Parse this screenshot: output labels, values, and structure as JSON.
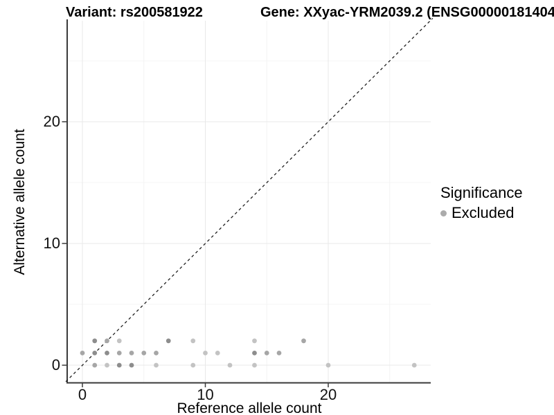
{
  "titles": {
    "variant": "Variant: rs200581922",
    "gene": "Gene: XXyac-YRM2039.2 (ENSG00000181404"
  },
  "axes": {
    "x": {
      "title": "Reference allele count",
      "major_ticks": [
        0,
        10,
        20
      ],
      "minor_ticks": [
        5,
        15,
        25
      ]
    },
    "y": {
      "title": "Alternative allele count",
      "major_ticks": [
        0,
        10,
        20
      ],
      "minor_ticks": [
        5,
        15,
        25
      ]
    }
  },
  "legend": {
    "title": "Significance",
    "items": [
      {
        "label": "Excluded",
        "color": "#ababab"
      }
    ]
  },
  "style": {
    "background": "#ffffff",
    "grid_major": "#e8e8e8",
    "grid_minor": "#f4f4f4",
    "axis_line": "#3a3a3a",
    "tick_text": "#111111",
    "title_text": "#000000",
    "identity_line": "#1f1f1f",
    "point_shades": {
      "d": "#8d8d8d",
      "m": "#a6a6a6",
      "l": "#c3c3c3"
    }
  },
  "chart_data": {
    "type": "scatter",
    "title": "Variant: rs200581922 — Gene: XXyac-YRM2039.2 (ENSG00000181404",
    "xlabel": "Reference allele count",
    "ylabel": "Alternative allele count",
    "xlim": [
      -1.35,
      28.5
    ],
    "ylim": [
      -1.5,
      28.3
    ],
    "x_ticks": [
      0,
      10,
      20
    ],
    "y_ticks": [
      0,
      10,
      20
    ],
    "grid": "major and minor gridlines, white panel, left/bottom axis lines only",
    "legend_position": "right",
    "reference_line": {
      "type": "identity y=x",
      "style": "dashed",
      "from": -1.35,
      "to": 28.5
    },
    "series": [
      {
        "name": "Excluded",
        "color": "#a6a6a6",
        "note": "points listed as [x, y, shade] where shade d=dark (overplotted), m=medium, l=light",
        "points": [
          [
            1,
            2,
            "d"
          ],
          [
            2,
            2,
            "m"
          ],
          [
            3,
            2,
            "l"
          ],
          [
            7,
            2,
            "d"
          ],
          [
            9,
            2,
            "l"
          ],
          [
            14,
            2,
            "l"
          ],
          [
            18,
            2,
            "m"
          ],
          [
            0,
            1,
            "m"
          ],
          [
            1,
            1,
            "d"
          ],
          [
            2,
            1,
            "d"
          ],
          [
            3,
            1,
            "m"
          ],
          [
            4,
            1,
            "m"
          ],
          [
            5,
            1,
            "m"
          ],
          [
            6,
            1,
            "m"
          ],
          [
            10,
            1,
            "l"
          ],
          [
            11,
            1,
            "l"
          ],
          [
            14,
            1,
            "d"
          ],
          [
            15,
            1,
            "m"
          ],
          [
            16,
            1,
            "m"
          ],
          [
            1,
            0,
            "m"
          ],
          [
            2,
            0,
            "l"
          ],
          [
            3,
            0,
            "d"
          ],
          [
            4,
            0,
            "d"
          ],
          [
            6,
            0,
            "l"
          ],
          [
            9,
            0,
            "l"
          ],
          [
            12,
            0,
            "l"
          ],
          [
            14,
            0,
            "l"
          ],
          [
            20,
            0,
            "l"
          ],
          [
            27,
            0,
            "l"
          ]
        ]
      }
    ]
  }
}
